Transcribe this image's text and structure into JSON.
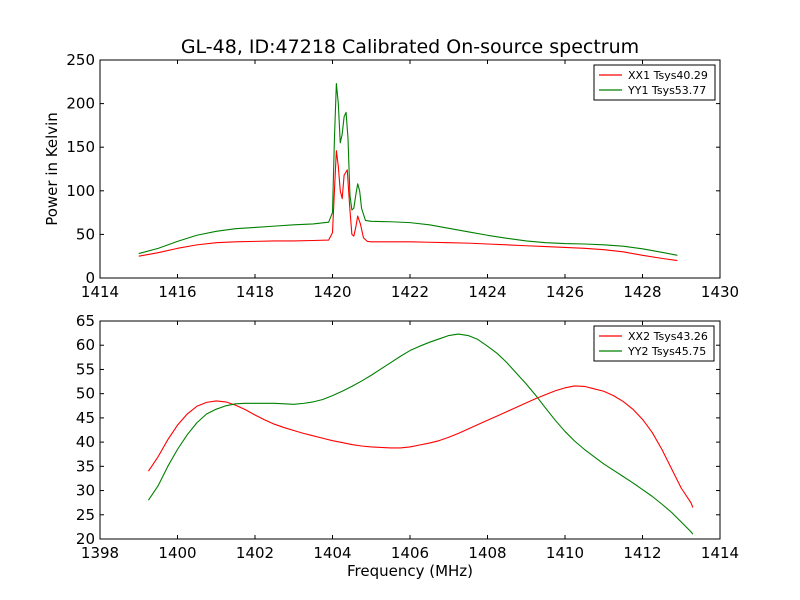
{
  "title": "GL-48, ID:47218 Calibrated On-source spectrum",
  "chart_data": [
    {
      "type": "line",
      "title": "GL-48, ID:47218 Calibrated On-source spectrum",
      "xlabel": "",
      "ylabel": "Power in Kelvin",
      "xlim": [
        1414,
        1430
      ],
      "ylim": [
        0,
        250
      ],
      "xticks": [
        1414,
        1416,
        1418,
        1420,
        1422,
        1424,
        1426,
        1428,
        1430
      ],
      "yticks": [
        0,
        50,
        100,
        150,
        200,
        250
      ],
      "legend_position": "top-right",
      "grid": false,
      "series": [
        {
          "name": "XX1 Tsys40.29",
          "color": "#ff0000",
          "points": [
            [
              1415.0,
              25
            ],
            [
              1415.5,
              29
            ],
            [
              1416.0,
              34
            ],
            [
              1416.5,
              38
            ],
            [
              1417.0,
              40.5
            ],
            [
              1417.5,
              41.5
            ],
            [
              1418.0,
              42
            ],
            [
              1418.5,
              42.5
            ],
            [
              1419.0,
              42.5
            ],
            [
              1419.5,
              43
            ],
            [
              1419.9,
              43.5
            ],
            [
              1420.0,
              52
            ],
            [
              1420.05,
              100
            ],
            [
              1420.1,
              146
            ],
            [
              1420.15,
              128
            ],
            [
              1420.2,
              100
            ],
            [
              1420.25,
              91
            ],
            [
              1420.3,
              118
            ],
            [
              1420.38,
              124
            ],
            [
              1420.45,
              78
            ],
            [
              1420.5,
              50
            ],
            [
              1420.55,
              48
            ],
            [
              1420.6,
              58
            ],
            [
              1420.65,
              71
            ],
            [
              1420.72,
              62
            ],
            [
              1420.8,
              46
            ],
            [
              1420.9,
              42
            ],
            [
              1421.0,
              41.5
            ],
            [
              1421.5,
              41.5
            ],
            [
              1422.0,
              41.5
            ],
            [
              1422.5,
              41
            ],
            [
              1423.0,
              40.5
            ],
            [
              1423.5,
              40
            ],
            [
              1424.0,
              39
            ],
            [
              1424.5,
              38
            ],
            [
              1425.0,
              37
            ],
            [
              1425.5,
              36
            ],
            [
              1426.0,
              35
            ],
            [
              1426.5,
              34
            ],
            [
              1427.0,
              32.5
            ],
            [
              1427.5,
              30
            ],
            [
              1428.0,
              26
            ],
            [
              1428.5,
              22.5
            ],
            [
              1428.9,
              20
            ]
          ]
        },
        {
          "name": "YY1 Tsys53.77",
          "color": "#008000",
          "points": [
            [
              1415.0,
              28
            ],
            [
              1415.5,
              34
            ],
            [
              1416.0,
              42
            ],
            [
              1416.5,
              49
            ],
            [
              1417.0,
              53.5
            ],
            [
              1417.5,
              56.5
            ],
            [
              1418.0,
              58
            ],
            [
              1418.5,
              59.5
            ],
            [
              1419.0,
              61
            ],
            [
              1419.5,
              62
            ],
            [
              1419.9,
              64
            ],
            [
              1420.0,
              75
            ],
            [
              1420.05,
              160
            ],
            [
              1420.1,
              223
            ],
            [
              1420.15,
              200
            ],
            [
              1420.2,
              155
            ],
            [
              1420.25,
              165
            ],
            [
              1420.3,
              185
            ],
            [
              1420.35,
              190
            ],
            [
              1420.4,
              160
            ],
            [
              1420.45,
              95
            ],
            [
              1420.5,
              78
            ],
            [
              1420.55,
              80
            ],
            [
              1420.6,
              95
            ],
            [
              1420.65,
              108
            ],
            [
              1420.7,
              100
            ],
            [
              1420.75,
              80
            ],
            [
              1420.85,
              66
            ],
            [
              1421.0,
              65
            ],
            [
              1421.5,
              64.5
            ],
            [
              1422.0,
              63.5
            ],
            [
              1422.5,
              61
            ],
            [
              1423.0,
              57
            ],
            [
              1423.5,
              53
            ],
            [
              1424.0,
              49
            ],
            [
              1424.5,
              45.5
            ],
            [
              1425.0,
              42.5
            ],
            [
              1425.5,
              40.5
            ],
            [
              1426.0,
              39.5
            ],
            [
              1426.5,
              39
            ],
            [
              1427.0,
              38
            ],
            [
              1427.5,
              36.5
            ],
            [
              1428.0,
              33.5
            ],
            [
              1428.5,
              29.5
            ],
            [
              1428.9,
              26
            ]
          ]
        }
      ]
    },
    {
      "type": "line",
      "title": "",
      "xlabel": "Frequency (MHz)",
      "ylabel": "",
      "xlim": [
        1398,
        1414
      ],
      "ylim": [
        20,
        65
      ],
      "xticks": [
        1398,
        1400,
        1402,
        1404,
        1406,
        1408,
        1410,
        1412,
        1414
      ],
      "yticks": [
        20,
        25,
        30,
        35,
        40,
        45,
        50,
        55,
        60,
        65
      ],
      "legend_position": "top-right",
      "grid": false,
      "series": [
        {
          "name": "XX2 Tsys43.26",
          "color": "#ff0000",
          "points": [
            [
              1399.25,
              34
            ],
            [
              1399.5,
              37
            ],
            [
              1399.75,
              40.5
            ],
            [
              1400.0,
              43.5
            ],
            [
              1400.25,
              45.8
            ],
            [
              1400.5,
              47.4
            ],
            [
              1400.75,
              48.2
            ],
            [
              1401.0,
              48.5
            ],
            [
              1401.25,
              48.3
            ],
            [
              1401.5,
              47.6
            ],
            [
              1401.75,
              46.7
            ],
            [
              1402.0,
              45.6
            ],
            [
              1402.25,
              44.6
            ],
            [
              1402.5,
              43.7
            ],
            [
              1402.75,
              43
            ],
            [
              1403.0,
              42.4
            ],
            [
              1403.25,
              41.8
            ],
            [
              1403.5,
              41.3
            ],
            [
              1403.75,
              40.8
            ],
            [
              1404.0,
              40.3
            ],
            [
              1404.25,
              39.9
            ],
            [
              1404.5,
              39.5
            ],
            [
              1404.75,
              39.2
            ],
            [
              1405.0,
              39
            ],
            [
              1405.25,
              38.9
            ],
            [
              1405.5,
              38.8
            ],
            [
              1405.75,
              38.8
            ],
            [
              1406.0,
              39
            ],
            [
              1406.25,
              39.4
            ],
            [
              1406.5,
              39.8
            ],
            [
              1406.75,
              40.3
            ],
            [
              1407.0,
              41
            ],
            [
              1407.25,
              41.8
            ],
            [
              1407.5,
              42.7
            ],
            [
              1407.75,
              43.6
            ],
            [
              1408.0,
              44.5
            ],
            [
              1408.25,
              45.4
            ],
            [
              1408.5,
              46.3
            ],
            [
              1408.75,
              47.2
            ],
            [
              1409.0,
              48.1
            ],
            [
              1409.25,
              49
            ],
            [
              1409.5,
              49.8
            ],
            [
              1409.75,
              50.6
            ],
            [
              1410.0,
              51.2
            ],
            [
              1410.25,
              51.6
            ],
            [
              1410.5,
              51.5
            ],
            [
              1410.75,
              51
            ],
            [
              1411.0,
              50.5
            ],
            [
              1411.25,
              49.6
            ],
            [
              1411.5,
              48.4
            ],
            [
              1411.75,
              46.8
            ],
            [
              1412.0,
              44.7
            ],
            [
              1412.25,
              42
            ],
            [
              1412.5,
              38.5
            ],
            [
              1412.75,
              34.5
            ],
            [
              1413.0,
              30.5
            ],
            [
              1413.25,
              27.5
            ],
            [
              1413.3,
              26.5
            ]
          ]
        },
        {
          "name": "YY2 Tsys45.75",
          "color": "#008000",
          "points": [
            [
              1399.25,
              28
            ],
            [
              1399.5,
              31
            ],
            [
              1399.75,
              35
            ],
            [
              1400.0,
              38.5
            ],
            [
              1400.25,
              41.5
            ],
            [
              1400.5,
              44
            ],
            [
              1400.75,
              45.8
            ],
            [
              1401.0,
              46.8
            ],
            [
              1401.25,
              47.5
            ],
            [
              1401.5,
              47.9
            ],
            [
              1401.75,
              48
            ],
            [
              1402.0,
              48
            ],
            [
              1402.5,
              48
            ],
            [
              1403.0,
              47.8
            ],
            [
              1403.25,
              48
            ],
            [
              1403.5,
              48.3
            ],
            [
              1403.75,
              48.8
            ],
            [
              1404.0,
              49.6
            ],
            [
              1404.25,
              50.5
            ],
            [
              1404.5,
              51.5
            ],
            [
              1404.75,
              52.6
            ],
            [
              1405.0,
              53.8
            ],
            [
              1405.25,
              55.1
            ],
            [
              1405.5,
              56.4
            ],
            [
              1405.75,
              57.7
            ],
            [
              1406.0,
              58.9
            ],
            [
              1406.25,
              59.8
            ],
            [
              1406.5,
              60.6
            ],
            [
              1406.75,
              61.3
            ],
            [
              1407.0,
              62
            ],
            [
              1407.25,
              62.3
            ],
            [
              1407.5,
              62
            ],
            [
              1407.75,
              61.2
            ],
            [
              1408.0,
              59.8
            ],
            [
              1408.25,
              58.3
            ],
            [
              1408.5,
              56.4
            ],
            [
              1408.75,
              54.2
            ],
            [
              1409.0,
              52
            ],
            [
              1409.25,
              49.6
            ],
            [
              1409.5,
              47
            ],
            [
              1409.75,
              44.5
            ],
            [
              1410.0,
              42.2
            ],
            [
              1410.25,
              40.2
            ],
            [
              1410.5,
              38.5
            ],
            [
              1410.75,
              37
            ],
            [
              1411.0,
              35.5
            ],
            [
              1411.25,
              34.2
            ],
            [
              1411.5,
              32.9
            ],
            [
              1411.75,
              31.6
            ],
            [
              1412.0,
              30.2
            ],
            [
              1412.25,
              28.8
            ],
            [
              1412.5,
              27.2
            ],
            [
              1412.75,
              25.5
            ],
            [
              1413.0,
              23.5
            ],
            [
              1413.25,
              21.5
            ],
            [
              1413.3,
              21
            ]
          ]
        }
      ]
    }
  ]
}
